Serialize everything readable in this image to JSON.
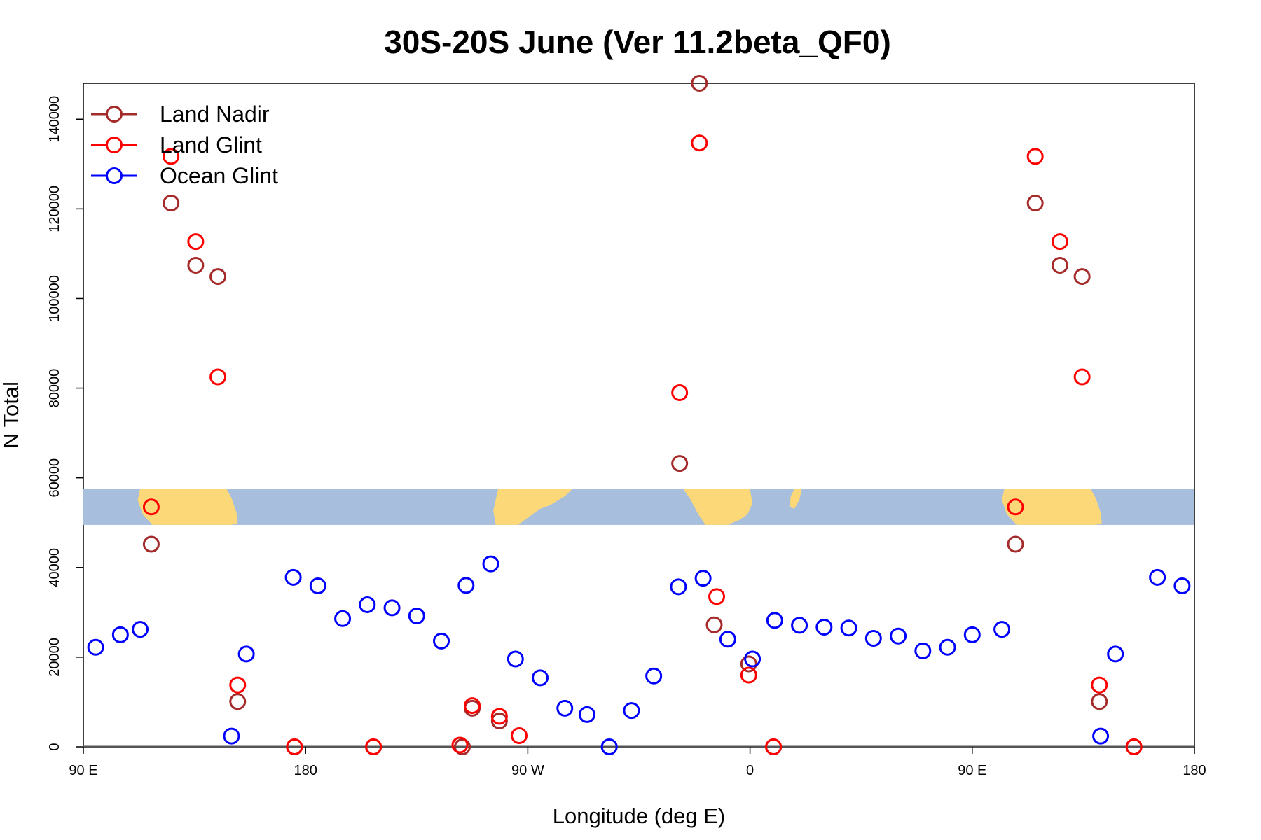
{
  "chart_data": {
    "type": "scatter",
    "title": "30S-20S June (Ver 11.2beta_QF0)",
    "xlabel": "Longitude (deg E)",
    "ylabel": "N Total",
    "xlim": [
      90,
      540
    ],
    "ylim": [
      0,
      148000
    ],
    "x_ticks": [
      {
        "value": 90,
        "label": "90 E"
      },
      {
        "value": 180,
        "label": "180"
      },
      {
        "value": 270,
        "label": "90 W"
      },
      {
        "value": 360,
        "label": "0"
      },
      {
        "value": 450,
        "label": "90 E"
      },
      {
        "value": 540,
        "label": "180"
      }
    ],
    "y_ticks": [
      {
        "value": 0,
        "label": "0"
      },
      {
        "value": 20000,
        "label": "20000"
      },
      {
        "value": 40000,
        "label": "40000"
      },
      {
        "value": 60000,
        "label": "60000"
      },
      {
        "value": 80000,
        "label": "80000"
      },
      {
        "value": 100000,
        "label": "100000"
      },
      {
        "value": 120000,
        "label": "120000"
      },
      {
        "value": 140000,
        "label": "140000"
      }
    ],
    "legend_position": "top-left",
    "grid": false,
    "map_strip": {
      "ylim": [
        49500,
        57500
      ],
      "ocean_color": "#a7bedd",
      "land_color": "#fdd878"
    },
    "series": [
      {
        "name": "Land Nadir",
        "color": "#a52a2a",
        "points": [
          {
            "x": 117.5,
            "y": 45200
          },
          {
            "x": 125.5,
            "y": 121300
          },
          {
            "x": 135.5,
            "y": 107400
          },
          {
            "x": 144.5,
            "y": 104900
          },
          {
            "x": 152.5,
            "y": 10100
          },
          {
            "x": 247.5,
            "y": 8600
          },
          {
            "x": 258.5,
            "y": 5800
          },
          {
            "x": 331.5,
            "y": 63200
          },
          {
            "x": 339.5,
            "y": 148000
          },
          {
            "x": 345.5,
            "y": 27200
          },
          {
            "x": 359.5,
            "y": 18500
          },
          {
            "x": 207.5,
            "y": 0
          },
          {
            "x": 175.5,
            "y": 0
          },
          {
            "x": 243.5,
            "y": 0
          },
          {
            "x": 369.5,
            "y": 0
          },
          {
            "x": 467.5,
            "y": 45200
          },
          {
            "x": 475.5,
            "y": 121300
          },
          {
            "x": 485.5,
            "y": 107400
          },
          {
            "x": 494.5,
            "y": 104900
          },
          {
            "x": 501.5,
            "y": 10100
          },
          {
            "x": 515.5,
            "y": 0
          }
        ]
      },
      {
        "name": "Land Glint",
        "color": "#ff0000",
        "points": [
          {
            "x": 117.5,
            "y": 53500
          },
          {
            "x": 125.5,
            "y": 131700
          },
          {
            "x": 135.5,
            "y": 112700
          },
          {
            "x": 144.5,
            "y": 82500
          },
          {
            "x": 152.5,
            "y": 13800
          },
          {
            "x": 175.5,
            "y": 0
          },
          {
            "x": 207.5,
            "y": 0
          },
          {
            "x": 242.5,
            "y": 400
          },
          {
            "x": 247.5,
            "y": 9200
          },
          {
            "x": 258.5,
            "y": 6800
          },
          {
            "x": 266.5,
            "y": 2500
          },
          {
            "x": 331.5,
            "y": 79000
          },
          {
            "x": 339.5,
            "y": 134700
          },
          {
            "x": 346.5,
            "y": 33500
          },
          {
            "x": 359.5,
            "y": 16000
          },
          {
            "x": 369.5,
            "y": 0
          },
          {
            "x": 467.5,
            "y": 53500
          },
          {
            "x": 475.5,
            "y": 131700
          },
          {
            "x": 485.5,
            "y": 112700
          },
          {
            "x": 494.5,
            "y": 82500
          },
          {
            "x": 501.5,
            "y": 13800
          },
          {
            "x": 515.5,
            "y": 0
          }
        ]
      },
      {
        "name": "Ocean Glint",
        "color": "#0000ff",
        "points": [
          {
            "x": 95,
            "y": 22200
          },
          {
            "x": 105,
            "y": 25000
          },
          {
            "x": 113,
            "y": 26200
          },
          {
            "x": 150,
            "y": 2400
          },
          {
            "x": 156,
            "y": 20700
          },
          {
            "x": 175,
            "y": 37800
          },
          {
            "x": 185,
            "y": 35900
          },
          {
            "x": 195,
            "y": 28600
          },
          {
            "x": 205,
            "y": 31700
          },
          {
            "x": 215,
            "y": 31000
          },
          {
            "x": 225,
            "y": 29200
          },
          {
            "x": 235,
            "y": 23600
          },
          {
            "x": 245,
            "y": 36000
          },
          {
            "x": 255,
            "y": 40800
          },
          {
            "x": 265,
            "y": 19600
          },
          {
            "x": 275,
            "y": 15400
          },
          {
            "x": 285,
            "y": 8600
          },
          {
            "x": 294,
            "y": 7200
          },
          {
            "x": 303,
            "y": 0
          },
          {
            "x": 312,
            "y": 8100
          },
          {
            "x": 321,
            "y": 15800
          },
          {
            "x": 331,
            "y": 35700
          },
          {
            "x": 341,
            "y": 37600
          },
          {
            "x": 351,
            "y": 24000
          },
          {
            "x": 361,
            "y": 19600
          },
          {
            "x": 370,
            "y": 28200
          },
          {
            "x": 380,
            "y": 27100
          },
          {
            "x": 390,
            "y": 26700
          },
          {
            "x": 400,
            "y": 26500
          },
          {
            "x": 410,
            "y": 24200
          },
          {
            "x": 420,
            "y": 24700
          },
          {
            "x": 430,
            "y": 21400
          },
          {
            "x": 440,
            "y": 22200
          },
          {
            "x": 450,
            "y": 25000
          },
          {
            "x": 462,
            "y": 26200
          },
          {
            "x": 502,
            "y": 2400
          },
          {
            "x": 508,
            "y": 20700
          },
          {
            "x": 525,
            "y": 37800
          },
          {
            "x": 535,
            "y": 35900
          }
        ]
      }
    ]
  }
}
